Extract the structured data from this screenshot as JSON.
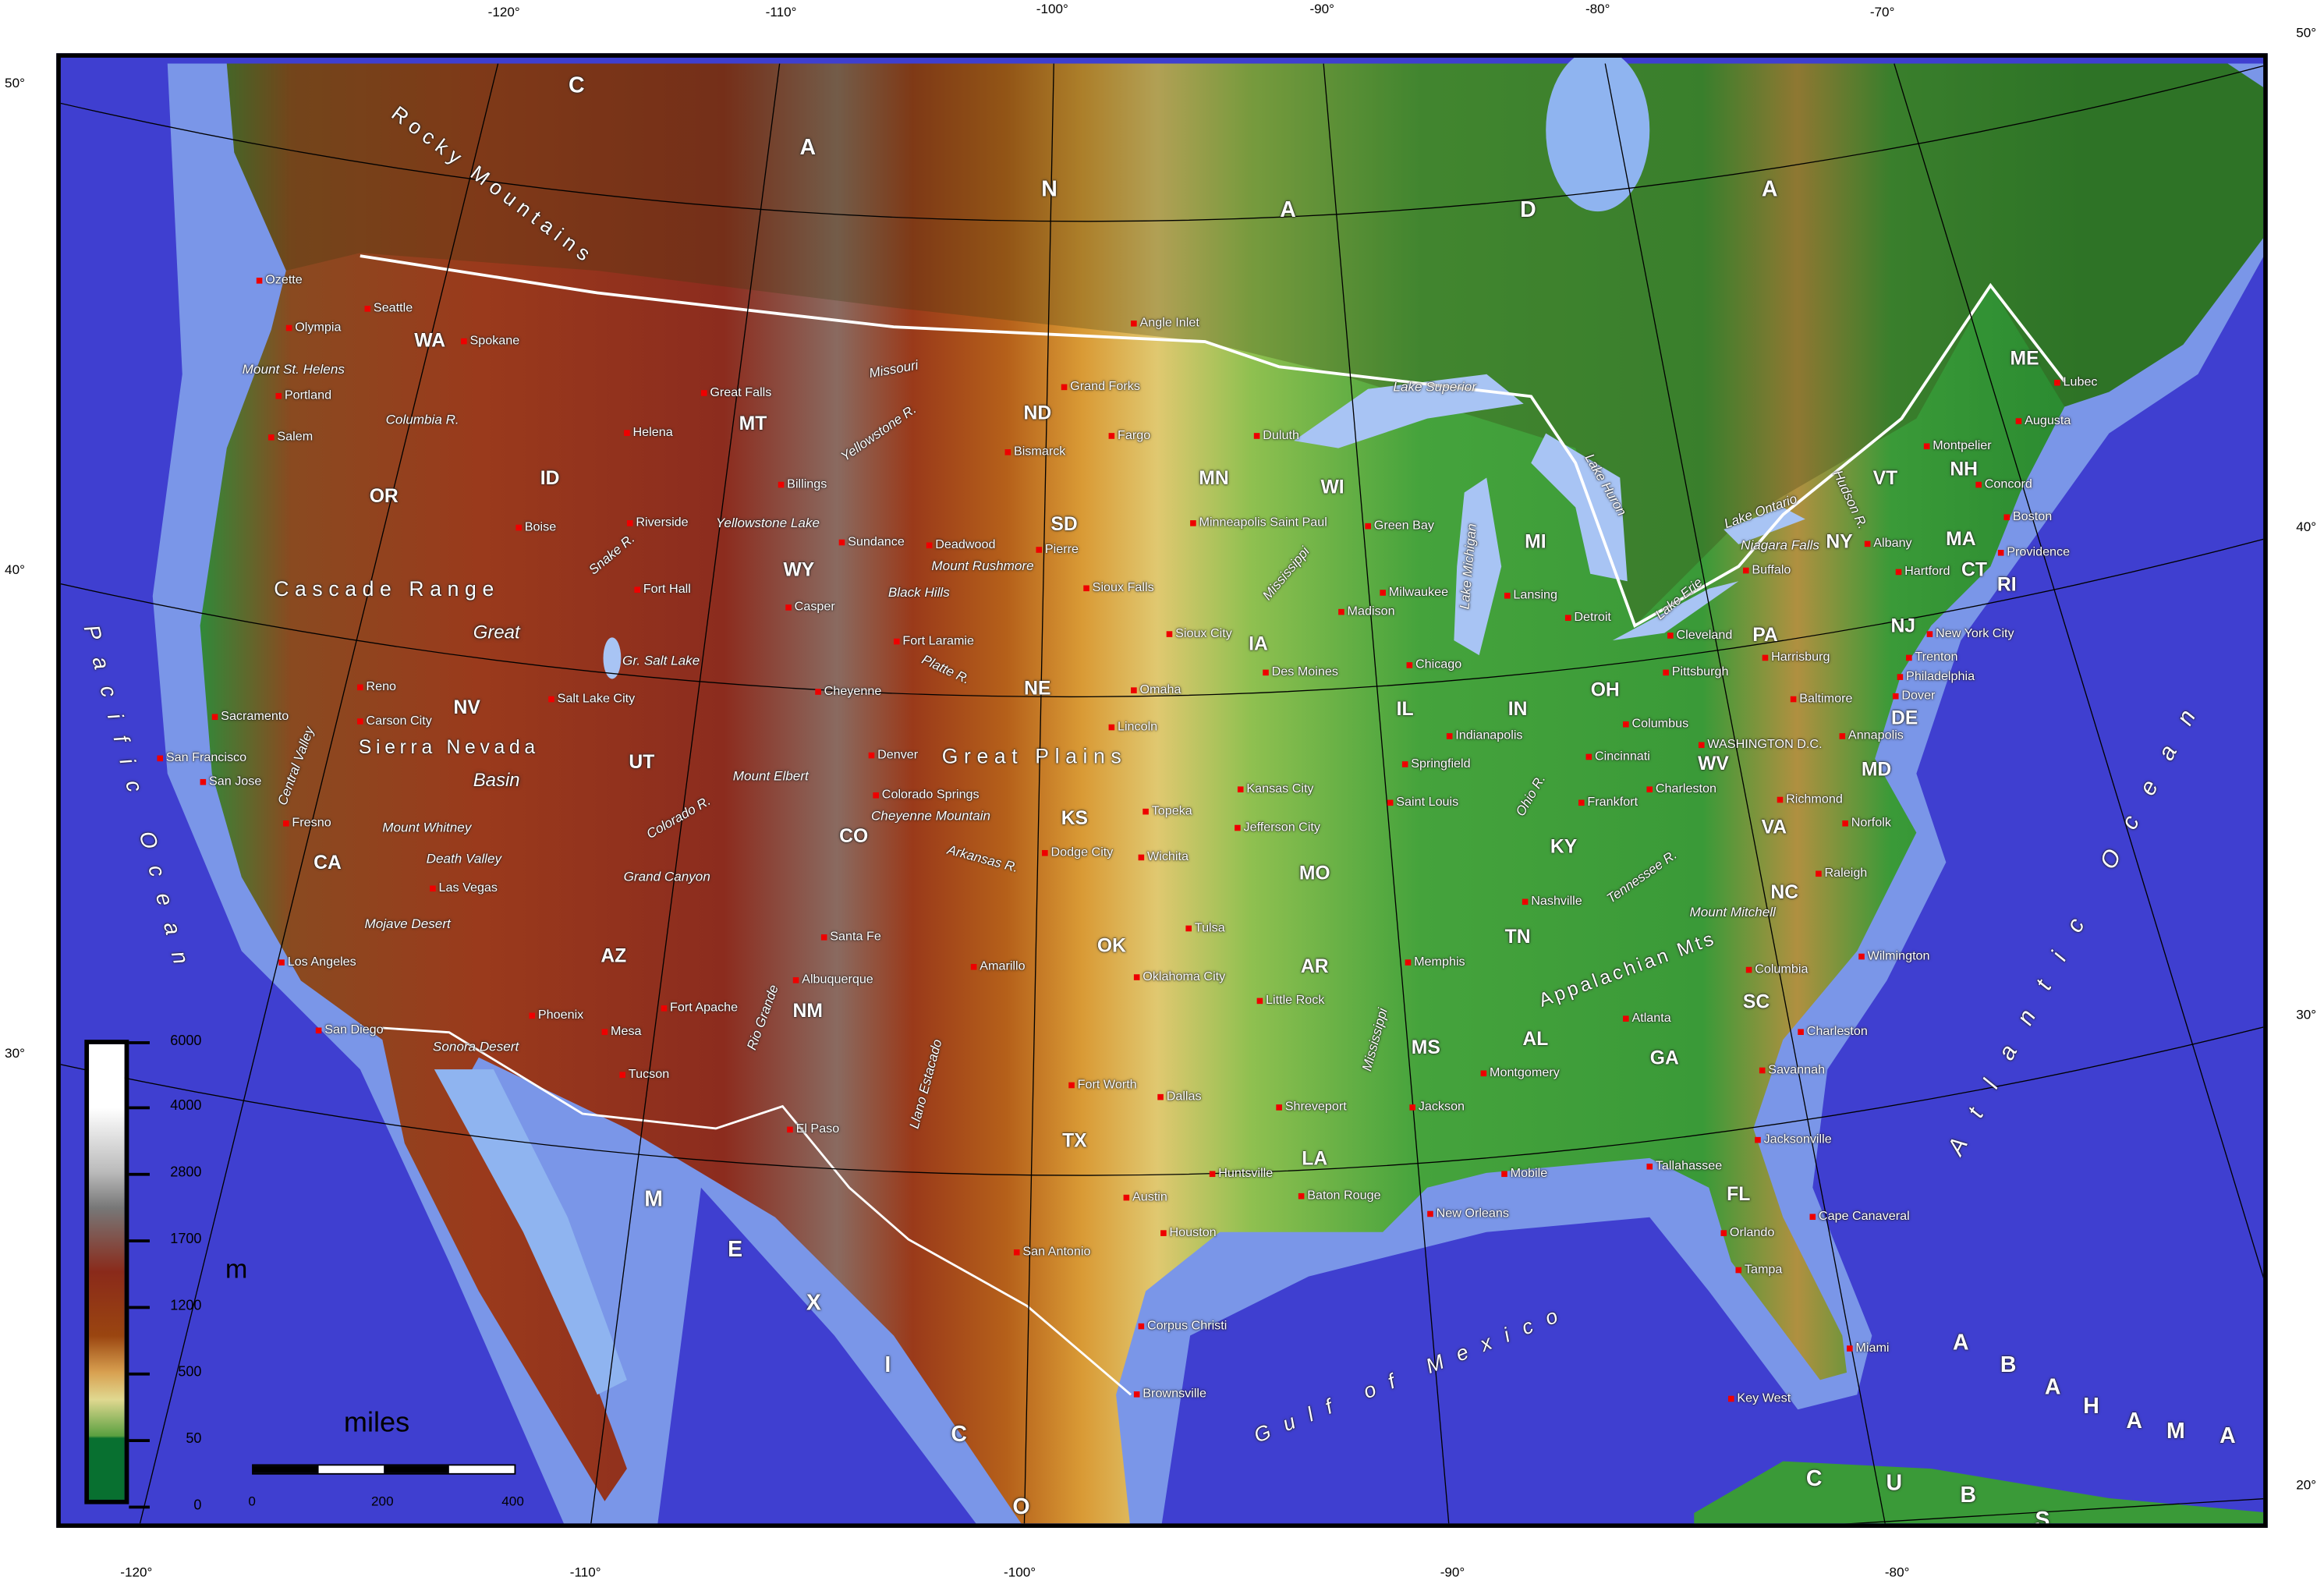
{
  "graticule": {
    "top": [
      "-120°",
      "-110°",
      "-100°",
      "-90°",
      "-80°",
      "-70°"
    ],
    "bottom": [
      "-120°",
      "-110°",
      "-100°",
      "-90°",
      "-80°"
    ],
    "left": [
      "50°",
      "40°",
      "30°"
    ],
    "right": [
      "50°",
      "40°",
      "30°",
      "20°"
    ]
  },
  "regions": [
    "C",
    "A",
    "N",
    "A",
    "D",
    "A",
    "M",
    "E",
    "X",
    "I",
    "C",
    "O",
    "C",
    "U",
    "B",
    "A",
    "B",
    "A",
    "H",
    "A",
    "M",
    "A",
    "S"
  ],
  "oceans": {
    "pacific": "Pacific Ocean",
    "atlantic": "Atlantic Ocean",
    "gulf": "Gulf of Mexico"
  },
  "ranges": [
    "Rocky Mountains",
    "Great Plains",
    "Cascade Range",
    "Sierra Nevada",
    "Appalachian Mts"
  ],
  "states": [
    "WA",
    "OR",
    "CA",
    "ID",
    "NV",
    "UT",
    "AZ",
    "MT",
    "WY",
    "CO",
    "NM",
    "ND",
    "SD",
    "NE",
    "KS",
    "OK",
    "TX",
    "MN",
    "IA",
    "MO",
    "AR",
    "LA",
    "WI",
    "IL",
    "MS",
    "MI",
    "IN",
    "OH",
    "KY",
    "TN",
    "AL",
    "GA",
    "FL",
    "SC",
    "NC",
    "VA",
    "WV",
    "PA",
    "NY",
    "VT",
    "NH",
    "ME",
    "MA",
    "CT",
    "RI",
    "NJ",
    "DE",
    "MD"
  ],
  "cities": [
    "Ozette",
    "Seattle",
    "Olympia",
    "Portland",
    "Salem",
    "Spokane",
    "Great Falls",
    "Helena",
    "Billings",
    "Boise",
    "Riverside",
    "Fort Hall",
    "Casper",
    "Sundance",
    "Deadwood",
    "Pierre",
    "Bismarck",
    "Grand Forks",
    "Fargo",
    "Angle Inlet",
    "Duluth",
    "Sioux Falls",
    "Minneapolis Saint Paul",
    "Fort Laramie",
    "Cheyenne",
    "Salt Lake City",
    "Reno",
    "Carson City",
    "Sacramento",
    "San Francisco",
    "San Jose",
    "Fresno",
    "Las Vegas",
    "Los Angeles",
    "San Diego",
    "Phoenix",
    "Mesa",
    "Fort Apache",
    "Tucson",
    "Denver",
    "Colorado Springs",
    "Santa Fe",
    "Albuquerque",
    "Amarillo",
    "El Paso",
    "Dodge City",
    "Wichita",
    "Lincoln",
    "Omaha",
    "Sioux City",
    "Des Moines",
    "Kansas City",
    "Topeka",
    "Jefferson City",
    "Saint Louis",
    "Tulsa",
    "Oklahoma City",
    "Little Rock",
    "Memphis",
    "Fort Worth",
    "Dallas",
    "Shreveport",
    "Jackson",
    "Austin",
    "San Antonio",
    "Houston",
    "Huntsville",
    "Baton Rouge",
    "New Orleans",
    "Corpus Christi",
    "Brownsville",
    "Mobile",
    "Montgomery",
    "Atlanta",
    "Tallahassee",
    "Jacksonville",
    "Orlando",
    "Cape Canaveral",
    "Tampa",
    "Miami",
    "Key West",
    "Savannah",
    "Charleston",
    "Columbia",
    "Wilmington",
    "Raleigh",
    "Norfolk",
    "Richmond",
    "Nashville",
    "Chicago",
    "Milwaukee",
    "Madison",
    "Green Bay",
    "Springfield",
    "Indianapolis",
    "Lansing",
    "Detroit",
    "Cleveland",
    "Columbus",
    "Cincinnati",
    "Frankfort",
    "Pittsburgh",
    "Charleston",
    "Harrisburg",
    "Baltimore",
    "WASHINGTON D.C.",
    "Annapolis",
    "Dover",
    "Philadelphia",
    "Trenton",
    "New York City",
    "Buffalo",
    "Albany",
    "Hartford",
    "Providence",
    "Boston",
    "Concord",
    "Montpelier",
    "Augusta",
    "Lubec"
  ],
  "features": [
    "Mount St. Helens",
    "Columbia R.",
    "Snake R.",
    "Missouri",
    "Yellowstone R.",
    "Yellowstone Lake",
    "Mount Rushmore",
    "Black Hills",
    "Platte R.",
    "Arkansas R.",
    "Colorado R.",
    "Rio Grande",
    "Llano Estacado",
    "Gr. Salt Lake",
    "Great",
    "Basin",
    "Central Valley",
    "Mount Whitney",
    "Death Valley",
    "Mojave Desert",
    "Grand Canyon",
    "Sonora Desert",
    "Mount Elbert",
    "Cheyenne Mountain",
    "Lake Superior",
    "Lake Michigan",
    "Lake Huron",
    "Lake Erie",
    "Lake Ontario",
    "Niagara Falls",
    "Hudson R.",
    "Mississippi",
    "Mississippi",
    "Ohio R.",
    "Tennessee R.",
    "Mount Mitchell"
  ],
  "legend": {
    "unit": "m",
    "ticks": [
      "6000",
      "4000",
      "2800",
      "1700",
      "1200",
      "500",
      "50",
      "0"
    ],
    "colors": [
      "#ffffff",
      "#bbbbbb",
      "#777777",
      "#8a2a1a",
      "#9a4510",
      "#d8a050",
      "#e0d890",
      "#5aa040",
      "#087030"
    ]
  },
  "scale": {
    "unit": "miles",
    "ticks": [
      "0",
      "200",
      "400"
    ]
  },
  "colors": {
    "ocean": "#3f3fd0",
    "shelf": "#8fb4f0",
    "border": "#ffffff",
    "capital_marker": "#e00000"
  }
}
